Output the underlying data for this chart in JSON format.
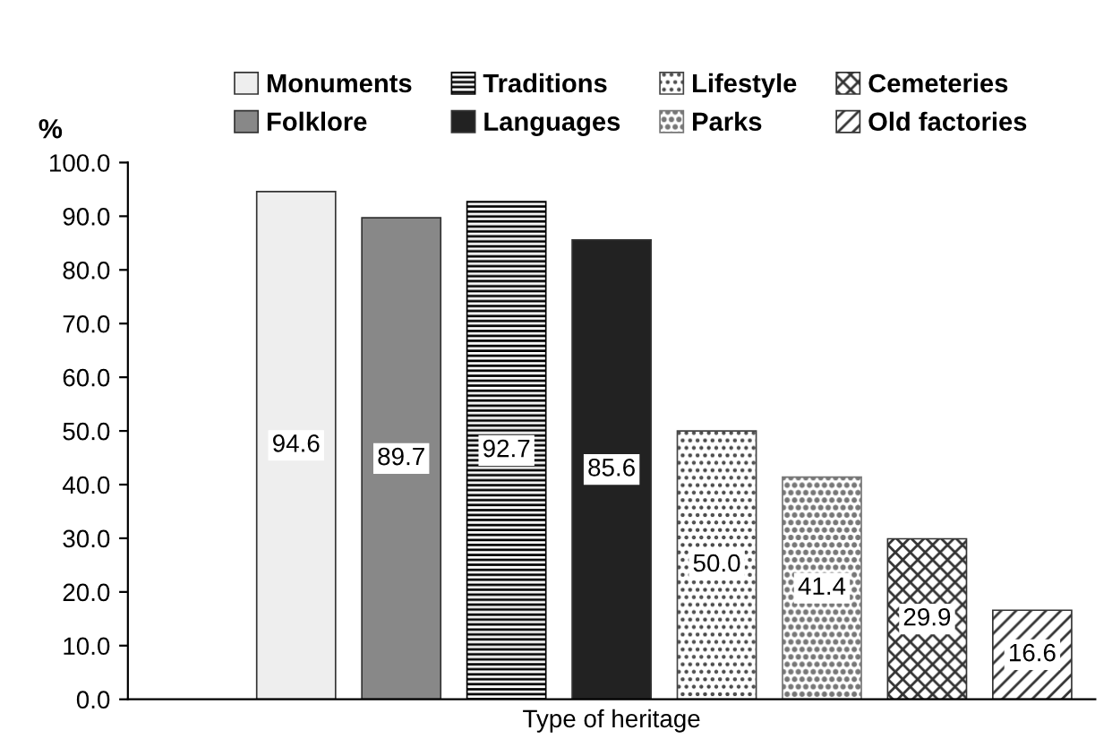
{
  "chart_data": {
    "type": "bar",
    "xlabel": "Type of heritage",
    "ylabel": "%",
    "categories": [
      null
    ],
    "series": [
      {
        "name": "Monuments",
        "color": "#eeeeee",
        "values": [
          94.6
        ],
        "value_labels": [
          "94.6"
        ]
      },
      {
        "name": "Folklore",
        "color": "#888888",
        "values": [
          89.7
        ],
        "value_labels": [
          "89.7"
        ]
      },
      {
        "name": "Traditions",
        "color": "#000000",
        "values": [
          92.7
        ],
        "value_labels": [
          "92.7"
        ]
      },
      {
        "name": "Languages",
        "color": "#222222",
        "values": [
          85.6
        ],
        "value_labels": [
          "85.6"
        ]
      },
      {
        "name": "Lifestyle",
        "color": "#444444",
        "values": [
          50.0
        ],
        "value_labels": [
          "50.0"
        ]
      },
      {
        "name": "Parks",
        "color": "#777777",
        "values": [
          41.4
        ],
        "value_labels": [
          "41.4"
        ]
      },
      {
        "name": "Cemeteries",
        "color": "#333333",
        "values": [
          29.9
        ],
        "value_labels": [
          "29.9"
        ]
      },
      {
        "name": "Old factories",
        "color": "#333333",
        "values": [
          16.6
        ],
        "value_labels": [
          "16.6"
        ]
      }
    ],
    "ylim": [
      0,
      100
    ],
    "yticks": [
      {
        "value": 0,
        "label": "0.0"
      },
      {
        "value": 10,
        "label": "10.0"
      },
      {
        "value": 20,
        "label": "20.0"
      },
      {
        "value": 30,
        "label": "30.0"
      },
      {
        "value": 40,
        "label": "40.0"
      },
      {
        "value": 50,
        "label": "50.0"
      },
      {
        "value": 60,
        "label": "60.0"
      },
      {
        "value": 70,
        "label": "70.0"
      },
      {
        "value": 80,
        "label": "80.0"
      },
      {
        "value": 90,
        "label": "90.0"
      },
      {
        "value": 100,
        "label": "100.0"
      }
    ],
    "grid": false,
    "legend": "top"
  }
}
